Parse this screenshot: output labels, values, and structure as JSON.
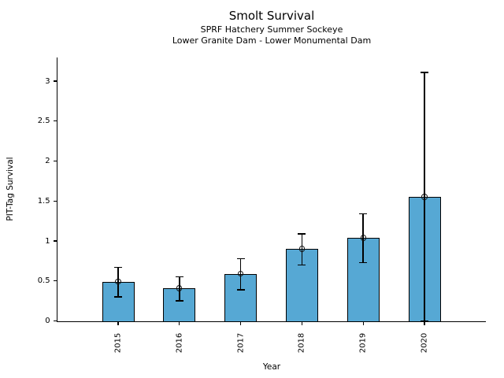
{
  "chart_data": {
    "type": "bar",
    "title": "Smolt Survival",
    "subtitles": [
      "SPRF Hatchery Summer Sockeye",
      "Lower Granite Dam - Lower Monumental Dam"
    ],
    "xlabel": "Year",
    "ylabel": "PIT-Tag Survival",
    "categories": [
      "2015",
      "2016",
      "2017",
      "2018",
      "2019",
      "2020"
    ],
    "values": [
      0.49,
      0.41,
      0.59,
      0.9,
      1.04,
      1.55
    ],
    "error_low": [
      0.3,
      0.25,
      0.39,
      0.7,
      0.73,
      0.0
    ],
    "error_high": [
      0.67,
      0.55,
      0.78,
      1.09,
      1.34,
      3.11
    ],
    "yticks": [
      0,
      0.5,
      1,
      1.5,
      2,
      2.5,
      3
    ],
    "ytick_labels": [
      "0",
      "0.5",
      "1",
      "1.5",
      "2",
      "2.5",
      "3"
    ],
    "ylim": [
      0,
      3.3
    ],
    "bar_color": "#56A8D4",
    "bar_edge_color": "#000000",
    "error_color": "#000000",
    "marker": "open-circle",
    "grid": false,
    "legend": false
  }
}
